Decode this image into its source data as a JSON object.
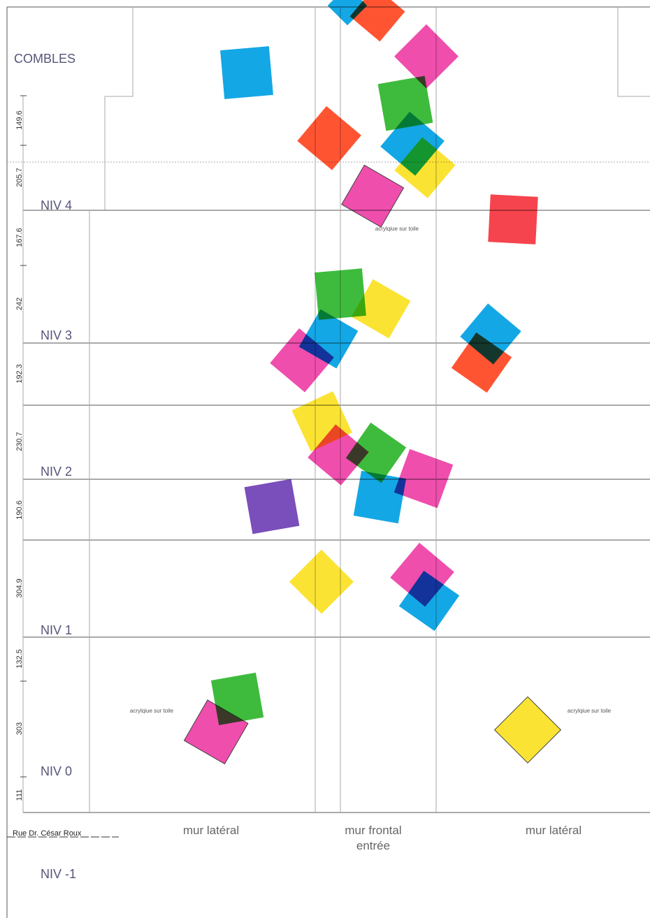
{
  "attic": {
    "label": "COMBLES"
  },
  "levels": [
    "NIV 4",
    "NIV 3",
    "NIV 2",
    "NIV 1",
    "NIV 0",
    "NIV -1"
  ],
  "dimensions": [
    "149.6",
    "205.7",
    "167.6",
    "242",
    "192.3",
    "230.7",
    "190.6",
    "304.9",
    "132.5",
    "303",
    "111"
  ],
  "notes": [
    "acrylqiue sur toile",
    "acrylqiue sur toile",
    "acrylqiue sur toile"
  ],
  "street": "Rue Dr. César Roux",
  "walls": [
    {
      "label": "mur latéral"
    },
    {
      "label": "mur frontal",
      "sublabel": "entrée"
    },
    {
      "label": "mur latéral"
    }
  ]
}
